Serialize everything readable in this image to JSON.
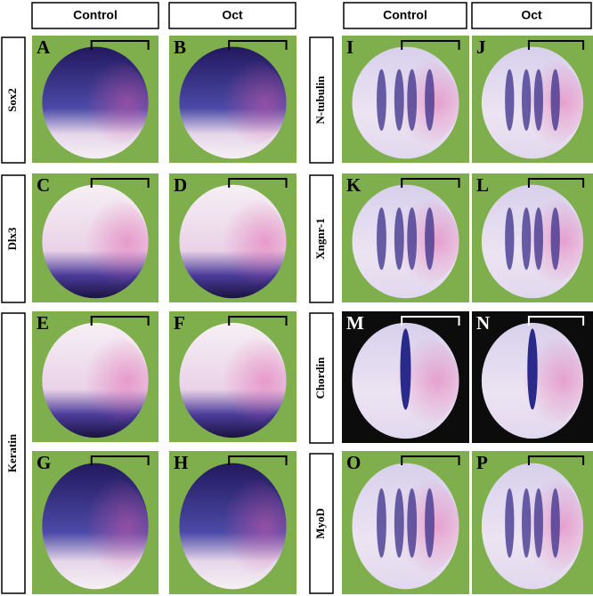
{
  "column_headers": [
    "Control",
    "Oct",
    "Control",
    "Oct"
  ],
  "row_labels": {
    "left": [
      "Sox2",
      "Dlx3",
      "Keratin"
    ],
    "right": [
      "N-tubulin",
      "Xngnr-1",
      "Chordin",
      "MyoD"
    ]
  },
  "panels": [
    "A",
    "B",
    "C",
    "D",
    "E",
    "F",
    "G",
    "H",
    "I",
    "J",
    "K",
    "L",
    "M",
    "N",
    "O",
    "P"
  ]
}
